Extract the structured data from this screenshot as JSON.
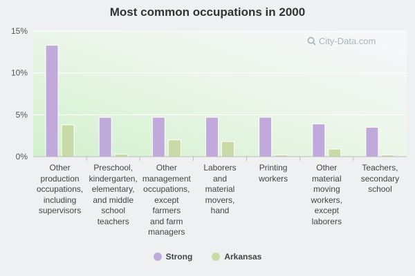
{
  "chart_data": {
    "type": "bar",
    "title": "Most common occupations in 2000",
    "categories": [
      "Other production occupations, including supervisors",
      "Preschool, kindergarten, elementary, and middle school teachers",
      "Other management occupations, except farmers and farm managers",
      "Laborers and material movers, hand",
      "Printing workers",
      "Other material moving workers, except laborers",
      "Teachers, secondary school"
    ],
    "category_lines": [
      [
        "Other",
        "production",
        "occupations,",
        "including",
        "supervisors"
      ],
      [
        "Preschool,",
        "kindergarten,",
        "elementary,",
        "and middle",
        "school",
        "teachers"
      ],
      [
        "Other",
        "management",
        "occupations,",
        "except",
        "farmers",
        "and farm",
        "managers"
      ],
      [
        "Laborers",
        "and",
        "material",
        "movers,",
        "hand"
      ],
      [
        "Printing",
        "workers"
      ],
      [
        "Other",
        "material",
        "moving",
        "workers,",
        "except",
        "laborers"
      ],
      [
        "Teachers,",
        "secondary",
        "school"
      ]
    ],
    "series": [
      {
        "name": "Strong",
        "color": "#c0a9db",
        "values": [
          13.3,
          4.7,
          4.7,
          4.7,
          4.7,
          3.9,
          3.5
        ]
      },
      {
        "name": "Arkansas",
        "color": "#c8dba6",
        "values": [
          3.8,
          0.3,
          2.0,
          1.8,
          0.2,
          0.9,
          0.2
        ]
      }
    ],
    "ylim": [
      0,
      15
    ],
    "yticks": [
      0,
      5,
      10,
      15
    ],
    "ytick_labels": [
      "0%",
      "5%",
      "10%",
      "15%"
    ],
    "grid": true,
    "legend_position": "bottom-center"
  },
  "watermark": "City-Data.com"
}
